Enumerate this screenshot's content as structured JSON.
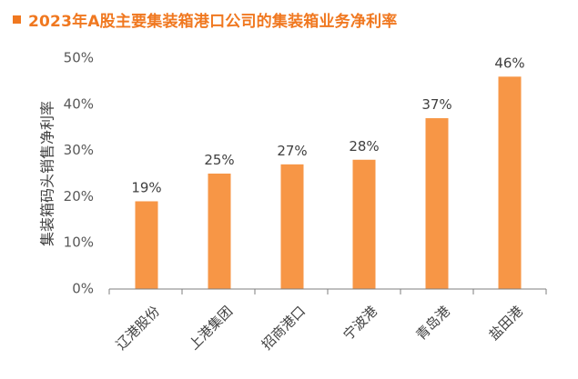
{
  "title": "2023年A股主要集装箱港口公司的集装箱业务净利率",
  "colors": {
    "accent": "#F07820",
    "bar": "#F79646",
    "axis": "#7f7f7f",
    "text": "#595959",
    "label": "#404040"
  },
  "chart_data": {
    "type": "bar",
    "title": "2023年A股主要集装箱港口公司的集装箱业务净利率",
    "xlabel": "",
    "ylabel": "集装箱码头销售净利率",
    "categories": [
      "辽港股份",
      "上港集团",
      "招商港口",
      "宁波港",
      "青岛港",
      "盐田港"
    ],
    "values": [
      19,
      25,
      27,
      28,
      37,
      46
    ],
    "value_labels": [
      "19%",
      "25%",
      "27%",
      "28%",
      "37%",
      "46%"
    ],
    "ylim": [
      0,
      50
    ],
    "yticks": [
      0,
      10,
      20,
      30,
      40,
      50
    ],
    "ytick_labels": [
      "0%",
      "10%",
      "20%",
      "30%",
      "40%",
      "50%"
    ],
    "grid": false,
    "legend": "none"
  }
}
